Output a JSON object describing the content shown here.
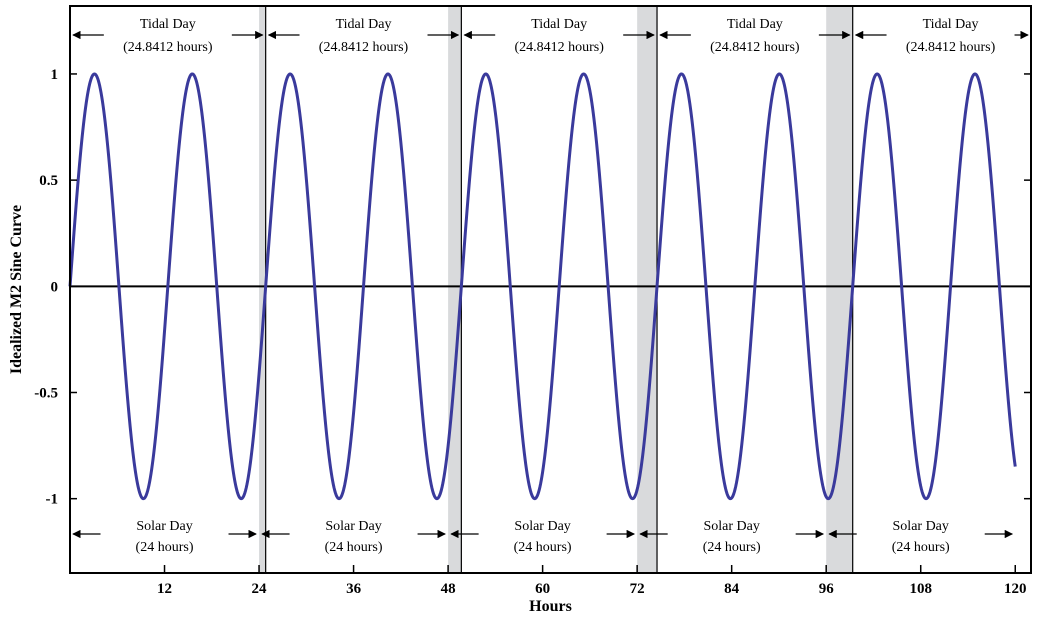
{
  "chart_data": {
    "type": "line",
    "title": "",
    "xlabel": "Hours",
    "ylabel": "Idealized M2 Sine Curve",
    "xlim": [
      0,
      122
    ],
    "ylim": [
      -1.35,
      1.32
    ],
    "x_ticks": [
      12,
      24,
      36,
      48,
      60,
      72,
      84,
      96,
      108,
      120
    ],
    "y_ticks": [
      1,
      0.5,
      0,
      -0.5,
      -1
    ],
    "series": [
      {
        "name": "",
        "color": "#3a3a9c",
        "function": "sin",
        "amplitude": 1,
        "period_hours": 12.4206,
        "x_start": 0,
        "x_end": 120
      }
    ],
    "tidal_day": {
      "label": "Tidal Day",
      "sublabel": "(24.8412 hours)",
      "length_hours": 24.8412,
      "count": 5
    },
    "solar_day": {
      "label": "Solar Day",
      "sublabel": "(24 hours)",
      "length_hours": 24,
      "count": 5
    },
    "colors": {
      "shade": "#d9dadc",
      "curve": "#3a3a9c",
      "axis": "#000000"
    },
    "grid": false,
    "legend": "none"
  }
}
